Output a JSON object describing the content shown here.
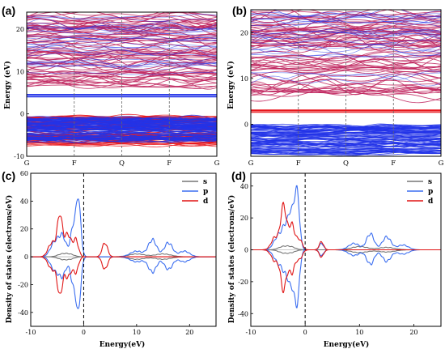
{
  "panels": {
    "a": "(a)",
    "b": "(b)",
    "c": "(c)",
    "d": "(d)"
  },
  "colors": {
    "red": "#e8141a",
    "blue": "#2233e8",
    "purple": "#c0245e",
    "dos_s": "#777777",
    "dos_p": "#3b6ef0",
    "dos_d": "#e01414"
  },
  "chart_data": [
    {
      "panel": "a",
      "type": "line",
      "title": "",
      "xlabel": "",
      "ylabel": "Energy (eV)",
      "kpoints": [
        "G",
        "F",
        "Q",
        "F",
        "G"
      ],
      "yticks": [
        -10,
        0,
        10,
        20
      ],
      "ylim": [
        -10,
        24
      ],
      "series": [
        {
          "name": "",
          "color": "blue",
          "flat_bands": [
            4.0,
            4.3,
            4.6
          ]
        },
        {
          "name": "",
          "color": "red",
          "band_range": [
            -7.5,
            -0.5
          ]
        },
        {
          "name": "",
          "color": "blue",
          "band_range": [
            -6.5,
            -0.8
          ]
        },
        {
          "name": "",
          "color": "purple",
          "band_range": [
            6.5,
            23.5
          ]
        }
      ]
    },
    {
      "panel": "b",
      "type": "line",
      "title": "",
      "xlabel": "",
      "ylabel": "Energy (eV)",
      "kpoints": [
        "G",
        "F",
        "Q",
        "F",
        "G"
      ],
      "yticks": [
        0,
        10,
        20
      ],
      "ylim": [
        -7,
        25
      ],
      "series": [
        {
          "name": "",
          "color": "red",
          "flat_bands": [
            2.6,
            2.9,
            3.1
          ]
        },
        {
          "name": "",
          "color": "blue",
          "band_range": [
            -6.5,
            -0.2
          ]
        },
        {
          "name": "",
          "color": "purple",
          "band_range": [
            6.0,
            24.5
          ]
        }
      ]
    },
    {
      "panel": "c",
      "type": "line",
      "title": "",
      "xlabel": "Energy(eV)",
      "ylabel": "Density of states (electrons/eV)",
      "xlim": [
        -10,
        25
      ],
      "ylim": [
        -50,
        60
      ],
      "xticks": [
        -10,
        0,
        10,
        20
      ],
      "yticks": [
        -40,
        -20,
        0,
        20,
        40,
        60
      ],
      "legend": [
        "s",
        "p",
        "d"
      ],
      "legend_position": "top-right",
      "fermi_level": 0,
      "series": [
        {
          "name": "s",
          "color": "dos_s",
          "peaks": [
            [
              -4,
              2,
              0.9
            ],
            [
              -2.5,
              1.5,
              0.8
            ],
            [
              10,
              2,
              1.5
            ],
            [
              15,
              2,
              1.5
            ]
          ]
        },
        {
          "name": "p",
          "color": "dos_p",
          "peaks": [
            [
              -5.5,
              10,
              0.8
            ],
            [
              -4,
              14,
              0.7
            ],
            [
              -1,
              40,
              0.45
            ],
            [
              -2,
              20,
              0.5
            ],
            [
              10,
              4,
              1.2
            ],
            [
              13,
              12,
              0.8
            ],
            [
              16,
              10,
              0.8
            ],
            [
              19,
              4,
              1.0
            ]
          ]
        },
        {
          "name": "d",
          "color": "dos_d",
          "peaks": [
            [
              -6,
              10,
              0.7
            ],
            [
              -4.5,
              29,
              0.5
            ],
            [
              -3,
              16,
              0.6
            ],
            [
              -1.5,
              12,
              0.5
            ],
            [
              4,
              10,
              0.5
            ]
          ]
        }
      ]
    },
    {
      "panel": "d",
      "type": "line",
      "title": "",
      "xlabel": "Energy(eV)",
      "ylabel": "Density of states (electrons/eV)",
      "xlim": [
        -10,
        25
      ],
      "ylim": [
        -48,
        48
      ],
      "xticks": [
        -10,
        0,
        10,
        20
      ],
      "yticks": [
        -40,
        -20,
        0,
        20,
        40
      ],
      "legend": [
        "s",
        "p",
        "d"
      ],
      "legend_position": "top-right",
      "fermi_level": 0,
      "series": [
        {
          "name": "s",
          "color": "dos_s",
          "peaks": [
            [
              -4,
              2,
              0.9
            ],
            [
              -2.5,
              1.5,
              0.8
            ],
            [
              10,
              2,
              1.5
            ],
            [
              15,
              1.5,
              1.5
            ]
          ]
        },
        {
          "name": "p",
          "color": "dos_p",
          "peaks": [
            [
              -5,
              8,
              0.8
            ],
            [
              -3.5,
              14,
              0.7
            ],
            [
              -1.5,
              36,
              0.45
            ],
            [
              -2.5,
              18,
              0.5
            ],
            [
              3,
              4,
              0.4
            ],
            [
              9,
              4,
              1.0
            ],
            [
              12,
              10,
              0.7
            ],
            [
              15,
              8,
              0.8
            ],
            [
              18,
              3,
              1.0
            ]
          ]
        },
        {
          "name": "d",
          "color": "dos_d",
          "peaks": [
            [
              -5.5,
              8,
              0.7
            ],
            [
              -4,
              27,
              0.5
            ],
            [
              -2.5,
              16,
              0.6
            ],
            [
              -1,
              6,
              0.5
            ],
            [
              3,
              5,
              0.4
            ]
          ]
        }
      ]
    }
  ]
}
